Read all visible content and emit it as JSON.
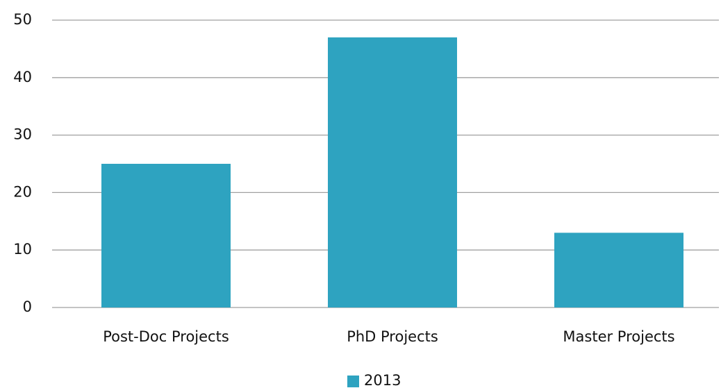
{
  "chart_data": {
    "type": "bar",
    "categories": [
      "Post-Doc Projects",
      "PhD Projects",
      "Master Projects"
    ],
    "series": [
      {
        "name": "2013",
        "color": "#2ea3c0",
        "values": [
          25,
          47,
          13
        ]
      }
    ],
    "ylim": [
      0,
      50
    ],
    "yticks": [
      0,
      10,
      20,
      30,
      40,
      50
    ],
    "grid": true,
    "legend": "bottom"
  }
}
